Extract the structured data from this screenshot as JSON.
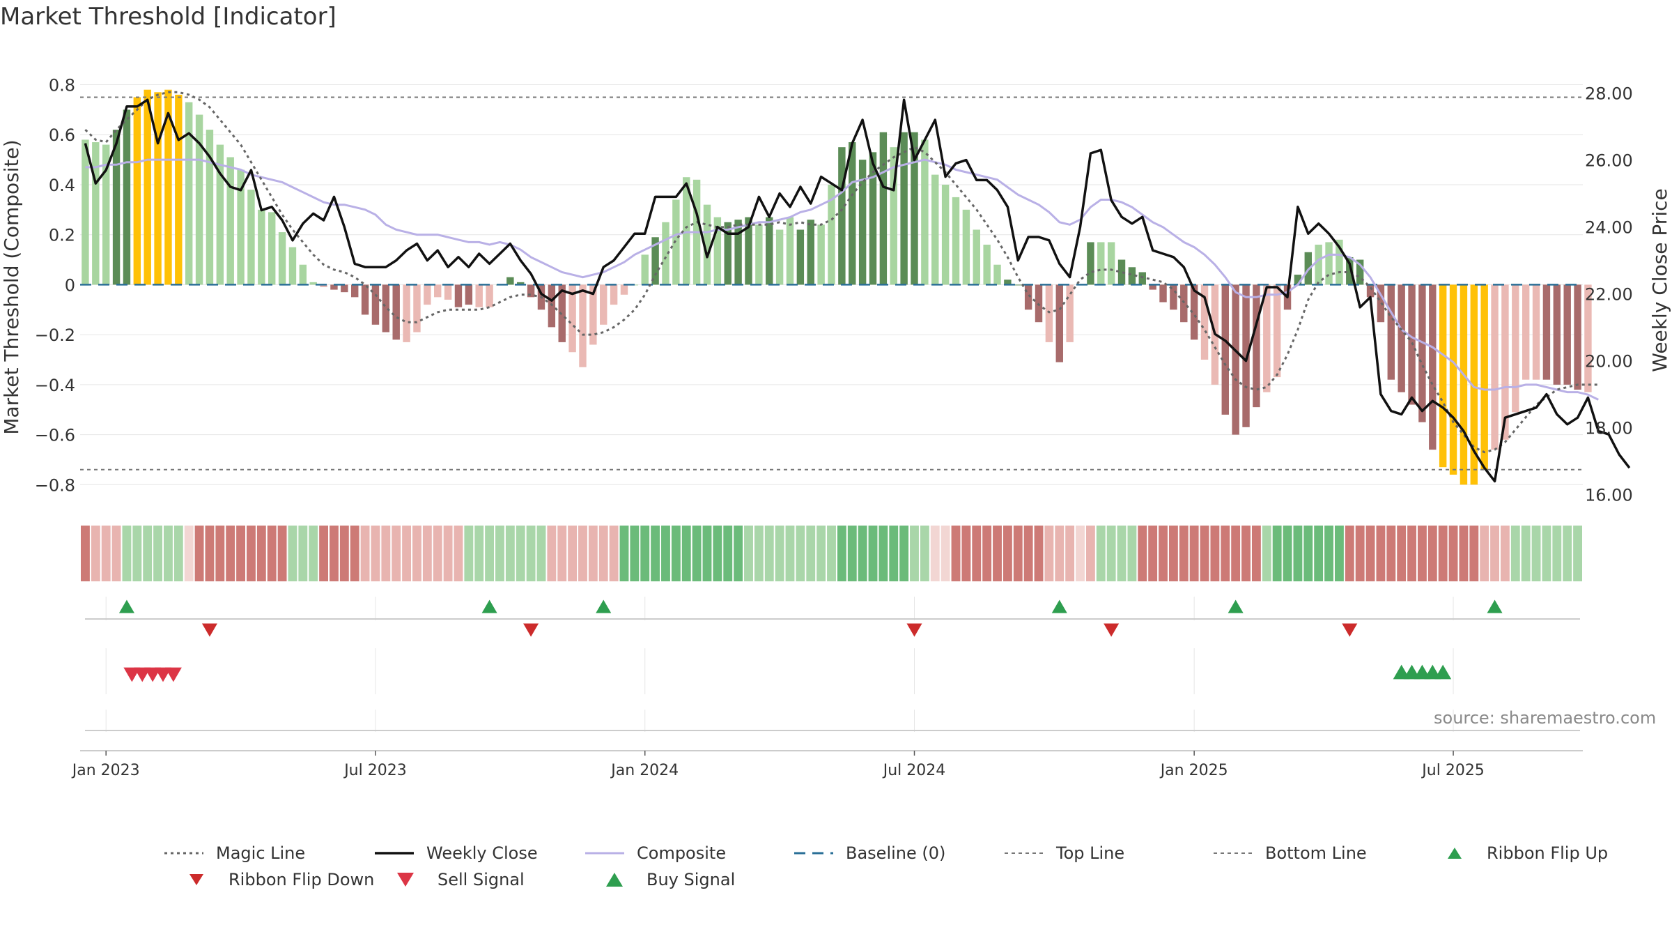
{
  "title": "Market Threshold [Indicator]",
  "source": "source: sharemaestro.com",
  "colors": {
    "strong_up": "#5b8c56",
    "light_up": "#a8d5a0",
    "strong_down": "#a86b6b",
    "light_down": "#eab9b4",
    "extreme": "#ffc107",
    "close": "#111111",
    "composite": "#b9b0e6",
    "magic": "#666666",
    "baseline": "#2a6f97",
    "threshold": "#777777",
    "buy": "#2e9e4f",
    "sell": "#dc3545"
  },
  "chart_data": {
    "type": "bar",
    "title": "Market Threshold [Indicator]",
    "ylabel": "Market Threshold (Composite)",
    "y2label": "Weekly Close Price",
    "ylim": [
      -0.88,
      0.86
    ],
    "y2lim": [
      15.7,
      28.7
    ],
    "yticks": [
      0.8,
      0.6,
      0.4,
      0.2,
      0,
      -0.2,
      -0.4,
      -0.6,
      -0.8
    ],
    "yticklabels": [
      "0.8",
      "0.6",
      "0.4",
      "0.2",
      "0",
      "−0.2",
      "−0.4",
      "−0.6",
      "−0.8"
    ],
    "y2ticks": [
      28,
      26,
      24,
      22,
      20,
      18,
      16
    ],
    "y2ticklabels": [
      "28.00",
      "26.00",
      "24.00",
      "22.00",
      "20.00",
      "18.00",
      "16.00"
    ],
    "xticks": [
      {
        "week": 2,
        "label": "Jan 2023"
      },
      {
        "week": 28,
        "label": "Jul 2023"
      },
      {
        "week": 54,
        "label": "Jan 2024"
      },
      {
        "week": 80,
        "label": "Jul 2024"
      },
      {
        "week": 107,
        "label": "Jan 2025"
      },
      {
        "week": 132,
        "label": "Jul 2025"
      }
    ],
    "weeks": 145,
    "top_line": 0.75,
    "bottom_line": -0.74,
    "baseline": 0,
    "composite_bars": [
      0.58,
      0.57,
      0.56,
      0.62,
      0.7,
      0.75,
      0.78,
      0.77,
      0.78,
      0.76,
      0.73,
      0.68,
      0.62,
      0.56,
      0.51,
      0.46,
      0.38,
      0.3,
      0.29,
      0.21,
      0.15,
      0.08,
      0.01,
      -0.01,
      -0.02,
      -0.03,
      -0.05,
      -0.12,
      -0.16,
      -0.19,
      -0.22,
      -0.23,
      -0.19,
      -0.08,
      -0.05,
      -0.06,
      -0.09,
      -0.08,
      -0.09,
      -0.09,
      0.0,
      0.03,
      0.01,
      -0.05,
      -0.1,
      -0.17,
      -0.23,
      -0.27,
      -0.33,
      -0.24,
      -0.16,
      -0.08,
      -0.04,
      0.0,
      0.12,
      0.19,
      0.25,
      0.34,
      0.43,
      0.42,
      0.32,
      0.27,
      0.25,
      0.26,
      0.27,
      0.24,
      0.27,
      0.22,
      0.27,
      0.22,
      0.26,
      0.24,
      0.4,
      0.55,
      0.57,
      0.5,
      0.53,
      0.61,
      0.55,
      0.61,
      0.61,
      0.58,
      0.44,
      0.4,
      0.35,
      0.3,
      0.22,
      0.16,
      0.08,
      0.02,
      0.0,
      -0.1,
      -0.15,
      -0.23,
      -0.31,
      -0.23,
      0.0,
      0.17,
      0.17,
      0.17,
      0.1,
      0.07,
      0.05,
      -0.02,
      -0.07,
      -0.1,
      -0.15,
      -0.22,
      -0.3,
      -0.4,
      -0.52,
      -0.6,
      -0.57,
      -0.49,
      -0.43,
      -0.37,
      -0.1,
      0.04,
      0.13,
      0.16,
      0.17,
      0.18,
      0.11,
      0.1,
      -0.05,
      -0.15,
      -0.38,
      -0.43,
      -0.48,
      -0.55,
      -0.66,
      -0.73,
      -0.76,
      -0.8,
      -0.8,
      -0.74,
      -0.66,
      -0.62,
      -0.51,
      -0.38,
      -0.38,
      -0.38,
      -0.4,
      -0.4,
      -0.42,
      -0.43
    ],
    "bar_classes": "LLLSSEEEEELLLLLLLLLLLlllSSSSSSSlllllSSllSSSSSSSlllllLLLSLLLLLLSSSLSLLSSLLSSSSSLSSLLLLLLLLSSSSlSLLSLlSSSSSSSSllSSSSLLSSSLllSSSSSSSSSEEEEElllllSSSS",
    "weekly_close": [
      26.5,
      25.3,
      25.7,
      26.5,
      27.6,
      27.6,
      27.8,
      26.5,
      27.4,
      26.6,
      26.8,
      26.5,
      26.1,
      25.6,
      25.2,
      25.1,
      25.7,
      24.5,
      24.6,
      24.2,
      23.6,
      24.1,
      24.4,
      24.2,
      24.9,
      24.0,
      22.9,
      22.8,
      22.8,
      22.8,
      23.0,
      23.3,
      23.5,
      23.0,
      23.3,
      22.8,
      23.1,
      22.8,
      23.2,
      22.9,
      23.2,
      23.5,
      23.0,
      22.6,
      22.0,
      21.8,
      22.1,
      22.0,
      22.1,
      22.0,
      22.8,
      23.0,
      23.4,
      23.8,
      23.8,
      24.9,
      24.9,
      24.9,
      25.3,
      24.4,
      23.1,
      24.0,
      23.8,
      23.8,
      24.0,
      24.9,
      24.3,
      25.0,
      24.6,
      25.2,
      24.7,
      25.5,
      25.3,
      25.1,
      26.5,
      27.2,
      25.9,
      25.2,
      25.1,
      27.8,
      26.0,
      26.6,
      27.2,
      25.5,
      25.9,
      26.0,
      25.4,
      25.4,
      25.1,
      24.6,
      23.0,
      23.7,
      23.7,
      23.6,
      22.9,
      22.5,
      24.0,
      26.2,
      26.3,
      24.8,
      24.3,
      24.1,
      24.3,
      23.3,
      23.2,
      23.1,
      22.8,
      22.1,
      21.9,
      20.8,
      20.6,
      20.3,
      20.0,
      21.1,
      22.2,
      22.2,
      21.9,
      24.6,
      23.8,
      24.1,
      23.8,
      23.4,
      22.9,
      21.6,
      21.9,
      19.0,
      18.5,
      18.4,
      18.9,
      18.5,
      18.8,
      18.6,
      18.3,
      17.9,
      17.3,
      16.8,
      16.4,
      18.3,
      18.4,
      18.5,
      18.6,
      19.0,
      18.4,
      18.1,
      18.3,
      18.9,
      17.9,
      17.8,
      17.2,
      16.8
    ],
    "composite_line": [
      0.47,
      0.47,
      0.48,
      0.48,
      0.49,
      0.49,
      0.5,
      0.5,
      0.5,
      0.5,
      0.5,
      0.5,
      0.49,
      0.48,
      0.47,
      0.46,
      0.44,
      0.43,
      0.42,
      0.41,
      0.39,
      0.37,
      0.35,
      0.33,
      0.32,
      0.32,
      0.31,
      0.3,
      0.28,
      0.24,
      0.22,
      0.21,
      0.2,
      0.2,
      0.2,
      0.19,
      0.18,
      0.17,
      0.17,
      0.16,
      0.17,
      0.16,
      0.14,
      0.11,
      0.09,
      0.07,
      0.05,
      0.04,
      0.03,
      0.04,
      0.05,
      0.07,
      0.09,
      0.12,
      0.14,
      0.16,
      0.18,
      0.2,
      0.21,
      0.21,
      0.21,
      0.22,
      0.22,
      0.23,
      0.24,
      0.25,
      0.25,
      0.26,
      0.27,
      0.29,
      0.3,
      0.32,
      0.34,
      0.37,
      0.41,
      0.42,
      0.43,
      0.45,
      0.47,
      0.48,
      0.49,
      0.5,
      0.49,
      0.48,
      0.46,
      0.45,
      0.44,
      0.43,
      0.42,
      0.39,
      0.36,
      0.34,
      0.32,
      0.29,
      0.25,
      0.24,
      0.26,
      0.31,
      0.34,
      0.34,
      0.33,
      0.31,
      0.28,
      0.25,
      0.23,
      0.2,
      0.17,
      0.15,
      0.12,
      0.08,
      0.03,
      -0.03,
      -0.05,
      -0.05,
      -0.04,
      -0.04,
      -0.03,
      0.0,
      0.06,
      0.1,
      0.12,
      0.12,
      0.11,
      0.08,
      0.03,
      -0.04,
      -0.11,
      -0.18,
      -0.21,
      -0.23,
      -0.25,
      -0.28,
      -0.31,
      -0.36,
      -0.41,
      -0.42,
      -0.42,
      -0.41,
      -0.41,
      -0.4,
      -0.4,
      -0.41,
      -0.42,
      -0.43,
      -0.43,
      -0.44,
      -0.46
    ],
    "magic_line": [
      0.62,
      0.58,
      0.57,
      0.62,
      0.66,
      0.7,
      0.74,
      0.76,
      0.77,
      0.77,
      0.76,
      0.74,
      0.71,
      0.66,
      0.61,
      0.56,
      0.49,
      0.42,
      0.35,
      0.28,
      0.22,
      0.17,
      0.12,
      0.08,
      0.06,
      0.05,
      0.03,
      0.0,
      -0.04,
      -0.09,
      -0.13,
      -0.15,
      -0.15,
      -0.13,
      -0.11,
      -0.1,
      -0.1,
      -0.1,
      -0.1,
      -0.09,
      -0.07,
      -0.05,
      -0.04,
      -0.04,
      -0.05,
      -0.08,
      -0.12,
      -0.16,
      -0.2,
      -0.2,
      -0.19,
      -0.17,
      -0.14,
      -0.1,
      -0.04,
      0.04,
      0.11,
      0.18,
      0.23,
      0.25,
      0.24,
      0.23,
      0.23,
      0.24,
      0.24,
      0.24,
      0.24,
      0.25,
      0.24,
      0.25,
      0.24,
      0.24,
      0.26,
      0.3,
      0.36,
      0.41,
      0.45,
      0.48,
      0.51,
      0.53,
      0.55,
      0.53,
      0.49,
      0.45,
      0.4,
      0.35,
      0.3,
      0.24,
      0.18,
      0.11,
      0.03,
      -0.04,
      -0.08,
      -0.11,
      -0.1,
      -0.04,
      0.02,
      0.05,
      0.06,
      0.06,
      0.05,
      0.04,
      0.03,
      0.02,
      0.01,
      -0.02,
      -0.07,
      -0.12,
      -0.18,
      -0.25,
      -0.32,
      -0.38,
      -0.41,
      -0.42,
      -0.41,
      -0.36,
      -0.28,
      -0.18,
      -0.06,
      0.01,
      0.04,
      0.05,
      0.05,
      0.03,
      -0.01,
      -0.07,
      -0.13,
      -0.18,
      -0.23,
      -0.32,
      -0.4,
      -0.47,
      -0.55,
      -0.6,
      -0.65,
      -0.67,
      -0.66,
      -0.63,
      -0.58,
      -0.53,
      -0.48,
      -0.45,
      -0.42,
      -0.41,
      -0.4,
      -0.4,
      -0.4
    ],
    "ribbon_classes": "2111333333022222222233322221111111111333333331111111444444444444333333333444444433002222222221110133332222222222223444444422222222222221113333333",
    "ribbon_flip_up": [
      4,
      39,
      50,
      94,
      111,
      136
    ],
    "ribbon_flip_down": [
      12,
      43,
      80,
      99,
      122
    ],
    "sell_signals": [
      4.5,
      5.5,
      6.5,
      7.5,
      8.5
    ],
    "buy_signals": [
      127,
      128,
      129,
      130,
      131
    ],
    "legend": [
      {
        "key": "magic",
        "label": "Magic Line"
      },
      {
        "key": "close",
        "label": "Weekly Close"
      },
      {
        "key": "composite",
        "label": "Composite"
      },
      {
        "key": "baseline",
        "label": "Baseline (0)"
      },
      {
        "key": "top",
        "label": "Top Line"
      },
      {
        "key": "bottom",
        "label": "Bottom Line"
      },
      {
        "key": "flipup",
        "label": "Ribbon Flip Up"
      },
      {
        "key": "flipdown",
        "label": "Ribbon Flip Down"
      },
      {
        "key": "sell",
        "label": "Sell Signal"
      },
      {
        "key": "buy",
        "label": "Buy Signal"
      }
    ]
  }
}
